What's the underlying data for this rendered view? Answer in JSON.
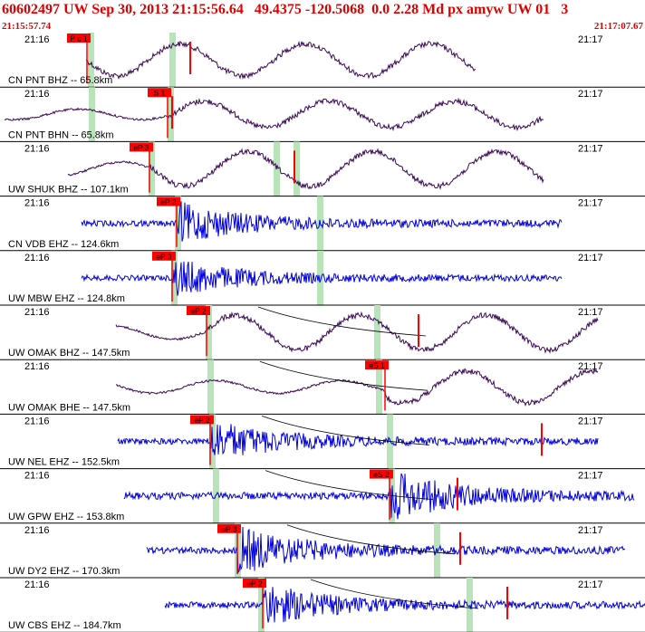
{
  "header": {
    "title": "60602497 UW Sep 30, 2013 21:15:56.64   49.4375 -120.5068  0.0 2.28 Md px amyw UW 01   3",
    "start_time": "21:15:57.74",
    "end_time": "21:17:07.67"
  },
  "colors": {
    "header_text": "#e00000",
    "trace_dark": "#3a0a55",
    "trace_blue": "#0000dd",
    "pick_box": "#ff0000",
    "pick_line": "#ff0000",
    "window_band": "#b9e3b9",
    "panel_border": "#000000"
  },
  "tick_left_label": "21:16",
  "tick_right_label": "21:17",
  "panels": [
    {
      "label": "CN PNT BHZ -- 65.8km",
      "phase": "P c 1",
      "color": "dark"
    },
    {
      "label": "CN PNT BHN -- 65.8km",
      "phase": "S 1",
      "color": "dark"
    },
    {
      "label": "UW SHUK BHZ -- 107.1km",
      "phase": "eP 3",
      "color": "dark"
    },
    {
      "label": "CN VDB EHZ -- 124.6km",
      "phase": "eP 2",
      "color": "blue"
    },
    {
      "label": "UW MBW EHZ -- 124.8km",
      "phase": "eP 3",
      "color": "blue"
    },
    {
      "label": "UW OMAK BHZ -- 147.5km",
      "phase": "eP 2",
      "color": "dark"
    },
    {
      "label": "UW OMAK BHE -- 147.5km",
      "phase": "eS 1",
      "color": "dark"
    },
    {
      "label": "UW NEL EHZ -- 152.5km",
      "phase": "eP 2",
      "color": "blue"
    },
    {
      "label": "UW GPW EHZ -- 153.8km",
      "phase": "eS 2",
      "color": "blue"
    },
    {
      "label": "UW DY2 EHZ -- 170.3km",
      "phase": "eP 3",
      "color": "blue"
    },
    {
      "label": "UW CBS EHZ -- 184.7km",
      "phase": "eP 2",
      "color": "blue"
    }
  ]
}
